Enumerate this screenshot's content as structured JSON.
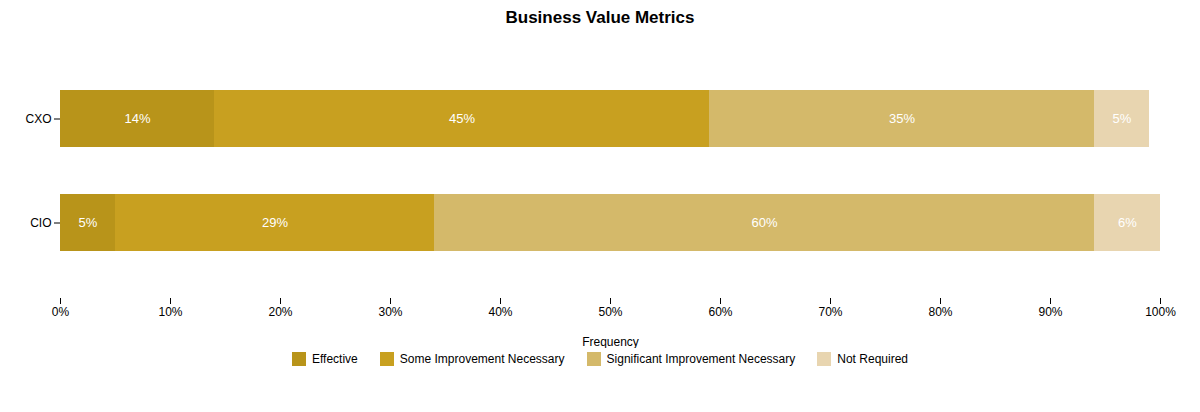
{
  "chart_data": {
    "type": "bar",
    "orientation": "horizontal",
    "stacked": true,
    "title": "Business Value Metrics",
    "xlabel": "Frequency",
    "categories": [
      "CIO",
      "CXO"
    ],
    "series": [
      {
        "name": "Effective",
        "color": "#B8941A",
        "values": [
          5,
          14
        ],
        "value_labels": [
          "5%",
          "14%"
        ]
      },
      {
        "name": "Some Improvement Necessary",
        "color": "#C8A020",
        "values": [
          29,
          45
        ],
        "value_labels": [
          "29%",
          "45%"
        ]
      },
      {
        "name": "Significant Improvement Necessary",
        "color": "#D4B96A",
        "values": [
          60,
          35
        ],
        "value_labels": [
          "60%",
          "35%"
        ]
      },
      {
        "name": "Not Required",
        "color": "#E8D5B0",
        "values": [
          6,
          5
        ],
        "value_labels": [
          "6%",
          "5%"
        ]
      }
    ],
    "xlim": [
      0,
      100
    ],
    "xticks": [
      {
        "value": 0,
        "label": "0%"
      },
      {
        "value": 10,
        "label": "10%"
      },
      {
        "value": 20,
        "label": "20%"
      },
      {
        "value": 30,
        "label": "30%"
      },
      {
        "value": 40,
        "label": "40%"
      },
      {
        "value": 50,
        "label": "50%"
      },
      {
        "value": 60,
        "label": "60%"
      },
      {
        "value": 70,
        "label": "70%"
      },
      {
        "value": 80,
        "label": "80%"
      },
      {
        "value": 90,
        "label": "90%"
      },
      {
        "value": 100,
        "label": "100%"
      }
    ],
    "data_labels": true,
    "grid": false,
    "legend": "bottom"
  }
}
